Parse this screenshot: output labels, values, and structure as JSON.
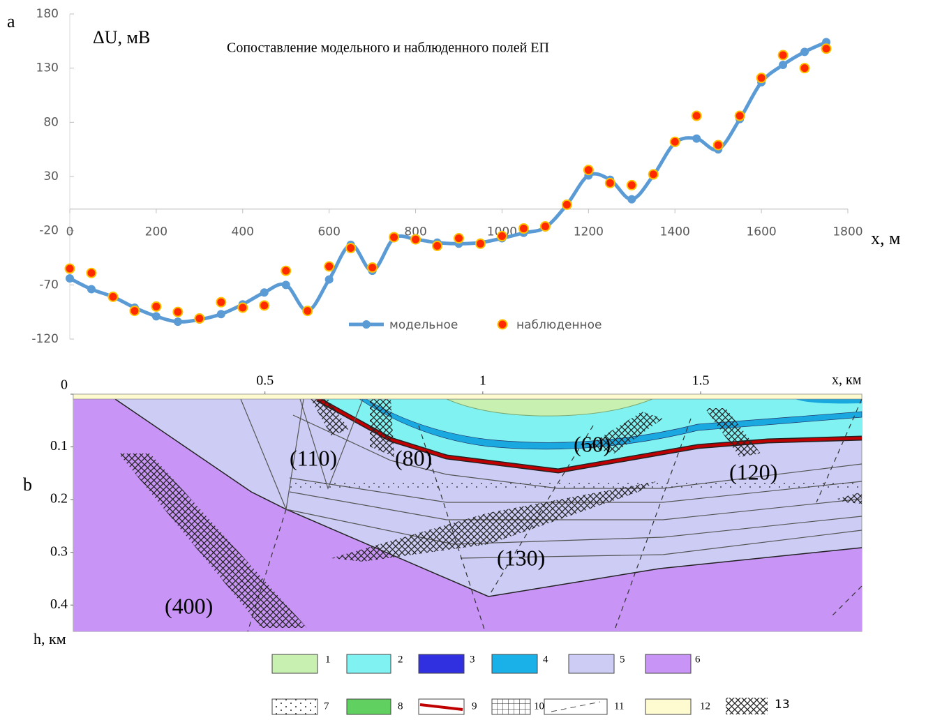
{
  "chart_data": [
    {
      "type": "line",
      "label": "a",
      "title": "Сопоставление модельного и наблюденного полей ЕП",
      "ylabel": "ΔU, мВ",
      "xlabel": "x, м",
      "x": [
        0,
        50,
        100,
        150,
        200,
        250,
        300,
        350,
        400,
        450,
        500,
        550,
        600,
        650,
        700,
        750,
        800,
        850,
        900,
        950,
        1000,
        1050,
        1100,
        1150,
        1200,
        1250,
        1300,
        1350,
        1400,
        1450,
        1500,
        1550,
        1600,
        1650,
        1700,
        1750
      ],
      "xlim": [
        0,
        1800
      ],
      "ylim": [
        -120,
        180
      ],
      "xticks": [
        0,
        200,
        400,
        600,
        800,
        1000,
        1200,
        1400,
        1600,
        1800
      ],
      "yticks": [
        -120,
        -70,
        -20,
        30,
        80,
        130,
        180
      ],
      "series": [
        {
          "name": "модельное",
          "color": "#5b9bd5",
          "line": true,
          "values": [
            -64,
            -74,
            -81,
            -91,
            -99,
            -104,
            -102,
            -97,
            -88,
            -77,
            -70,
            -94,
            -65,
            -33,
            -57,
            -27,
            -28,
            -31,
            -32,
            -31,
            -27,
            -22,
            -17,
            4,
            31,
            27,
            9,
            31,
            61,
            65,
            55,
            83,
            117,
            133,
            145,
            154
          ]
        },
        {
          "name": "наблюденное",
          "color": "#ff2a00",
          "edgecolor": "#ffc000",
          "line": false,
          "values": [
            -55,
            -59,
            -81,
            -94,
            -90,
            -95,
            -101,
            -86,
            -91,
            -89,
            -57,
            -94,
            -53,
            -36,
            -54,
            -26,
            -28,
            -34,
            -27,
            -32,
            -25,
            -18,
            -16,
            4,
            36,
            24,
            22,
            32,
            62,
            86,
            59,
            86,
            121,
            142,
            130,
            148
          ]
        }
      ]
    },
    {
      "type": "section",
      "label": "b",
      "xlabel": "x, км",
      "ylabel": "h, км",
      "xlim": [
        0.06,
        1.87
      ],
      "ylim": [
        0,
        0.45
      ],
      "xticks": [
        0.5,
        1,
        1.5
      ],
      "yticks": [
        0,
        0.1,
        0.2,
        0.3,
        0.4
      ],
      "annotations": [
        "(110)",
        "(80)",
        "(60)",
        "(120)",
        "(130)",
        "(400)"
      ],
      "legend": [
        "1",
        "2",
        "3",
        "4",
        "5",
        "6",
        "7",
        "8",
        "9",
        "10",
        "11",
        "12",
        "13"
      ]
    }
  ]
}
